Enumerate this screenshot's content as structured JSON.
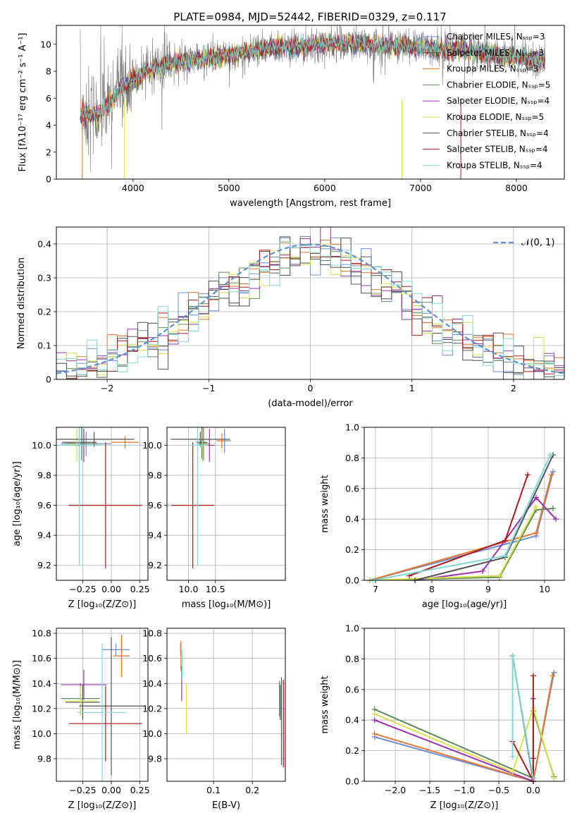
{
  "figure_title": "PLATE=0984, MJD=52442, FIBERID=0329, z=0.117",
  "models": [
    {
      "name": "Chabrier MILES",
      "nssp": "3",
      "color": "#6a8fd8"
    },
    {
      "name": "Salpeter MILES",
      "nssp": "3",
      "color": "#4a4a4a"
    },
    {
      "name": "Kroupa MILES",
      "nssp": "3",
      "color": "#e8762c"
    },
    {
      "name": "Chabrier ELODIE",
      "nssp": "5",
      "color": "#5a8a5a"
    },
    {
      "name": "Salpeter ELODIE",
      "nssp": "4",
      "color": "#9a30b0"
    },
    {
      "name": "Kroupa ELODIE",
      "nssp": "5",
      "color": "#d8e04a"
    },
    {
      "name": "Chabrier STELIB",
      "nssp": "4",
      "color": "#555555"
    },
    {
      "name": "Salpeter STELIB",
      "nssp": "4",
      "color": "#b01818"
    },
    {
      "name": "Kroupa STELIB",
      "nssp": "4",
      "color": "#7fd8d8"
    }
  ],
  "chart_data": [
    {
      "type": "line",
      "title": "PLATE=0984, MJD=52442, FIBERID=0329, z=0.117",
      "xlabel": "wavelength [Angstrom, rest frame]",
      "ylabel": "Flux [fλ10⁻¹⁷ erg cm⁻² s⁻¹ A⁻¹]",
      "xlim": [
        3200,
        8500
      ],
      "ylim": [
        0,
        11.4
      ],
      "xticks": [
        4000,
        5000,
        6000,
        7000,
        8000
      ],
      "yticks": [
        0,
        2,
        4,
        6,
        8,
        10
      ],
      "grid": false,
      "legend": "right",
      "continuum": {
        "x": [
          3450,
          3600,
          3700,
          3800,
          3900,
          4000,
          4100,
          4200,
          4400,
          4600,
          4800,
          5000,
          5200,
          5400,
          5600,
          5800,
          6000,
          6200,
          6400,
          6600,
          6800,
          7000,
          7200,
          7400,
          7600,
          7800,
          8000,
          8200,
          8300
        ],
        "y": [
          4.9,
          4.7,
          5.2,
          6.0,
          6.9,
          7.3,
          7.9,
          8.2,
          8.6,
          8.8,
          9.0,
          9.2,
          9.5,
          9.7,
          9.8,
          9.9,
          10.0,
          10.1,
          10.0,
          9.9,
          9.9,
          9.8,
          9.6,
          9.6,
          9.4,
          9.2,
          9.0,
          8.8,
          8.8
        ]
      }
    },
    {
      "type": "step-histogram",
      "xlabel": "(data-model)/error",
      "ylabel": "Normed distribution",
      "xlim": [
        -2.5,
        2.5
      ],
      "ylim": [
        0,
        0.45
      ],
      "xticks": [
        -2,
        -1,
        0,
        1,
        2
      ],
      "xtick_labels": [
        "−2",
        "−1",
        "0",
        "1",
        "2"
      ],
      "yticks": [
        0,
        0.1,
        0.2,
        0.3,
        0.4
      ],
      "grid": true,
      "legend": "top-right",
      "reference_label": "𝒩(0, 1)",
      "bins": [
        -2.5,
        2.5,
        50
      ]
    },
    {
      "type": "scatter-errorbar",
      "xlabel": "Z [log₁₀(Z/Z⊙)]",
      "ylabel": "age  [log₁₀(age/yr)]",
      "xlim": [
        -0.48,
        0.32
      ],
      "ylim": [
        9.1,
        10.12
      ],
      "xticks": [
        -0.25,
        0,
        0.25
      ],
      "xtick_labels": [
        "−0.25",
        "0.00",
        "0.25"
      ],
      "yticks": [
        9.2,
        9.4,
        9.6,
        9.8,
        10.0
      ],
      "ytick_labels": [
        "9.2",
        "9.4",
        "9.6",
        "9.8",
        "10.0"
      ],
      "grid": true,
      "points": [
        {
          "x": -0.22,
          "y": 10.01,
          "xe": 0.22,
          "ye": 0.08,
          "c": 0
        },
        {
          "x": -0.28,
          "y": 10.02,
          "xe": 0.15,
          "ye": 0.11,
          "c": 1
        },
        {
          "x": 0.12,
          "y": 10.02,
          "xe": 0.12,
          "ye": 0.04,
          "c": 2
        },
        {
          "x": -0.26,
          "y": 10.01,
          "xe": 0.14,
          "ye": 0.11,
          "c": 3
        },
        {
          "x": -0.24,
          "y": 10.0,
          "xe": 0.12,
          "ye": 0.11,
          "c": 4
        },
        {
          "x": -0.3,
          "y": 10.0,
          "xe": 0.14,
          "ye": 0.11,
          "c": 5
        },
        {
          "x": -0.15,
          "y": 10.04,
          "xe": 0.35,
          "ye": 0.05,
          "c": 6
        },
        {
          "x": -0.05,
          "y": 9.6,
          "xe": 0.32,
          "ye": 0.42,
          "c": 7
        },
        {
          "x": -0.28,
          "y": 10.0,
          "xe": 0.2,
          "ye": 0.8,
          "c": 8
        }
      ]
    },
    {
      "type": "scatter-errorbar",
      "xlabel": "mass [log₁₀(M/M⊙)]",
      "ylabel": "",
      "xlim": [
        9.6,
        11.8
      ],
      "ylim": [
        9.1,
        10.12
      ],
      "xticks": [
        10.0,
        10.5
      ],
      "xtick_labels": [
        "10.0",
        "10.5"
      ],
      "yticks": [
        9.2,
        9.4,
        9.6,
        9.8,
        10.0
      ],
      "ytick_labels": [
        "9.2",
        "9.4",
        "9.6",
        "9.8",
        "10.0"
      ],
      "grid": true,
      "points": [
        {
          "x": 10.67,
          "y": 10.03,
          "xe": 0.12,
          "ye": 0.08,
          "c": 0
        },
        {
          "x": 10.25,
          "y": 10.02,
          "xe": 0.1,
          "ye": 0.11,
          "c": 1
        },
        {
          "x": 10.62,
          "y": 10.03,
          "xe": 0.1,
          "ye": 0.05,
          "c": 2
        },
        {
          "x": 10.28,
          "y": 10.01,
          "xe": 0.12,
          "ye": 0.11,
          "c": 3
        },
        {
          "x": 10.39,
          "y": 10.0,
          "xe": 0.1,
          "ye": 0.11,
          "c": 4
        },
        {
          "x": 10.26,
          "y": 10.0,
          "xe": 0.1,
          "ye": 0.11,
          "c": 5
        },
        {
          "x": 10.22,
          "y": 10.04,
          "xe": 0.55,
          "ye": 0.05,
          "c": 6
        },
        {
          "x": 10.08,
          "y": 9.6,
          "xe": 0.4,
          "ye": 0.42,
          "c": 7
        },
        {
          "x": 10.17,
          "y": 10.0,
          "xe": 0.15,
          "ye": 0.8,
          "c": 8
        }
      ]
    },
    {
      "type": "line",
      "xlabel": "age  [log₁₀(age/yr)]",
      "ylabel": "mass weight",
      "xlim": [
        6.8,
        10.35
      ],
      "ylim": [
        0,
        1.0
      ],
      "xticks": [
        7,
        8,
        9,
        10
      ],
      "xtick_labels": [
        "7",
        "8",
        "9",
        "10"
      ],
      "yticks": [
        0,
        0.2,
        0.4,
        0.6,
        0.8,
        1.0
      ],
      "ytick_labels": [
        "0.0",
        "0.2",
        "0.4",
        "0.6",
        "0.8",
        "1.0"
      ],
      "grid": true,
      "series": [
        {
          "c": 0,
          "x": [
            6.9,
            9.85,
            10.15
          ],
          "y": [
            0.0,
            0.29,
            0.71
          ]
        },
        {
          "c": 2,
          "x": [
            6.9,
            9.85,
            10.12
          ],
          "y": [
            0.0,
            0.31,
            0.69
          ]
        },
        {
          "c": 3,
          "x": [
            6.9,
            9.2,
            9.85,
            10.15
          ],
          "y": [
            0.0,
            0.02,
            0.46,
            0.47
          ]
        },
        {
          "c": 4,
          "x": [
            7.7,
            8.9,
            9.85,
            10.2
          ],
          "y": [
            0.0,
            0.06,
            0.54,
            0.4
          ]
        },
        {
          "c": 5,
          "x": [
            6.9,
            9.2,
            9.85
          ],
          "y": [
            0.0,
            0.03,
            0.48
          ]
        },
        {
          "c": 6,
          "x": [
            7.7,
            9.3,
            10.15
          ],
          "y": [
            0.0,
            0.15,
            0.82
          ]
        },
        {
          "c": 7,
          "x": [
            7.6,
            9.3,
            9.7
          ],
          "y": [
            0.03,
            0.26,
            0.69
          ]
        },
        {
          "c": 8,
          "x": [
            6.95,
            9.3,
            10.1
          ],
          "y": [
            0.0,
            0.16,
            0.82
          ]
        }
      ]
    },
    {
      "type": "scatter-errorbar",
      "xlabel": "Z [log₁₀(Z/Z⊙)]",
      "ylabel": "mass [log₁₀(M/M⊙)]",
      "xlim": [
        -0.48,
        0.32
      ],
      "ylim": [
        9.62,
        10.84
      ],
      "xticks": [
        -0.25,
        0,
        0.25
      ],
      "xtick_labels": [
        "−0.25",
        "0.00",
        "0.25"
      ],
      "yticks": [
        9.8,
        10.0,
        10.2,
        10.4,
        10.6,
        10.8
      ],
      "ytick_labels": [
        "9.8",
        "10.0",
        "10.2",
        "10.4",
        "10.6",
        "10.8"
      ],
      "grid": true,
      "points": [
        {
          "x": 0.04,
          "y": 10.67,
          "xe": 0.12,
          "ye": 0.05,
          "c": 0
        },
        {
          "x": -0.25,
          "y": 10.25,
          "xe": 0.15,
          "ye": 0.14,
          "c": 1
        },
        {
          "x": 0.09,
          "y": 10.62,
          "xe": 0.07,
          "ye": 0.17,
          "c": 2
        },
        {
          "x": -0.27,
          "y": 10.28,
          "xe": 0.17,
          "ye": 0.12,
          "c": 3
        },
        {
          "x": -0.24,
          "y": 10.39,
          "xe": 0.2,
          "ye": 0.12,
          "c": 4
        },
        {
          "x": -0.27,
          "y": 10.26,
          "xe": 0.15,
          "ye": 0.12,
          "c": 5
        },
        {
          "x": 0.0,
          "y": 10.22,
          "xe": 0.28,
          "ye": 0.55,
          "c": 6
        },
        {
          "x": -0.05,
          "y": 10.08,
          "xe": 0.32,
          "ye": 0.3,
          "c": 7
        },
        {
          "x": -0.08,
          "y": 10.17,
          "xe": 0.22,
          "ye": 0.55,
          "c": 8
        }
      ]
    },
    {
      "type": "scatter-errorbar",
      "xlabel": "E(B-V)",
      "ylabel": "",
      "xlim": [
        -0.02,
        0.285
      ],
      "ylim": [
        9.62,
        10.84
      ],
      "xticks": [
        0.1,
        0.2
      ],
      "xtick_labels": [
        "0.1",
        "0.2"
      ],
      "yticks": [
        9.8,
        10.0,
        10.2,
        10.4,
        10.6,
        10.8
      ],
      "ytick_labels": [
        "9.8",
        "10.0",
        "10.2",
        "10.4",
        "10.6",
        "10.8"
      ],
      "grid": true,
      "points": [
        {
          "x": 0.015,
          "y": 10.67,
          "xe": 0.0,
          "ye": 0.05,
          "c": 0
        },
        {
          "x": 0.272,
          "y": 10.25,
          "xe": 0.0,
          "ye": 0.14,
          "c": 1
        },
        {
          "x": 0.016,
          "y": 10.62,
          "xe": 0.0,
          "ye": 0.12,
          "c": 2
        },
        {
          "x": 0.27,
          "y": 10.28,
          "xe": 0.0,
          "ye": 0.14,
          "c": 3
        },
        {
          "x": 0.018,
          "y": 10.4,
          "xe": 0.0,
          "ye": 0.14,
          "c": 4
        },
        {
          "x": 0.03,
          "y": 10.2,
          "xe": 0.0,
          "ye": 0.2,
          "c": 5
        },
        {
          "x": 0.275,
          "y": 10.1,
          "xe": 0.0,
          "ye": 0.35,
          "c": 6
        },
        {
          "x": 0.28,
          "y": 10.08,
          "xe": 0.0,
          "ye": 0.35,
          "c": 7
        },
        {
          "x": 0.019,
          "y": 10.55,
          "xe": 0.0,
          "ye": 0.12,
          "c": 8
        }
      ]
    },
    {
      "type": "line",
      "xlabel": "Z [log₁₀(Z/Z⊙)]",
      "ylabel": "mass weight",
      "xlim": [
        -2.45,
        0.45
      ],
      "ylim": [
        0,
        1.0
      ],
      "xticks": [
        -2.0,
        -1.5,
        -1.0,
        -0.5,
        0.0
      ],
      "xtick_labels": [
        "−2.0",
        "−1.5",
        "−1.0",
        "−0.5",
        "0.0"
      ],
      "yticks": [
        0,
        0.2,
        0.4,
        0.6,
        0.8,
        1.0
      ],
      "ytick_labels": [
        "0.0",
        "0.2",
        "0.4",
        "0.6",
        "0.8",
        "1.0"
      ],
      "grid": true,
      "series": [
        {
          "c": 0,
          "x": [
            -2.3,
            0.0,
            0.3
          ],
          "y": [
            0.29,
            0.0,
            0.71
          ]
        },
        {
          "c": 2,
          "x": [
            -2.3,
            0.0,
            0.28
          ],
          "y": [
            0.31,
            0.0,
            0.69
          ]
        },
        {
          "c": 3,
          "x": [
            -2.3,
            0.0,
            0.0,
            0.3
          ],
          "y": [
            0.47,
            0.02,
            0.46,
            0.03
          ]
        },
        {
          "c": 4,
          "x": [
            -2.3,
            0.0,
            0.0
          ],
          "y": [
            0.4,
            0.0,
            0.54
          ]
        },
        {
          "c": 5,
          "x": [
            -2.3,
            -0.3,
            0.0,
            0.3
          ],
          "y": [
            0.44,
            0.06,
            0.48,
            0.02
          ]
        },
        {
          "c": 6,
          "x": [
            -0.3,
            0.0
          ],
          "y": [
            0.82,
            0.0
          ]
        },
        {
          "c": 7,
          "x": [
            -0.3,
            0.0,
            0.0,
            0.0
          ],
          "y": [
            0.26,
            0.0,
            0.69,
            0.15
          ]
        },
        {
          "c": 8,
          "x": [
            -0.3,
            -0.3,
            0.0
          ],
          "y": [
            0.16,
            0.82,
            0.02
          ]
        }
      ]
    }
  ]
}
